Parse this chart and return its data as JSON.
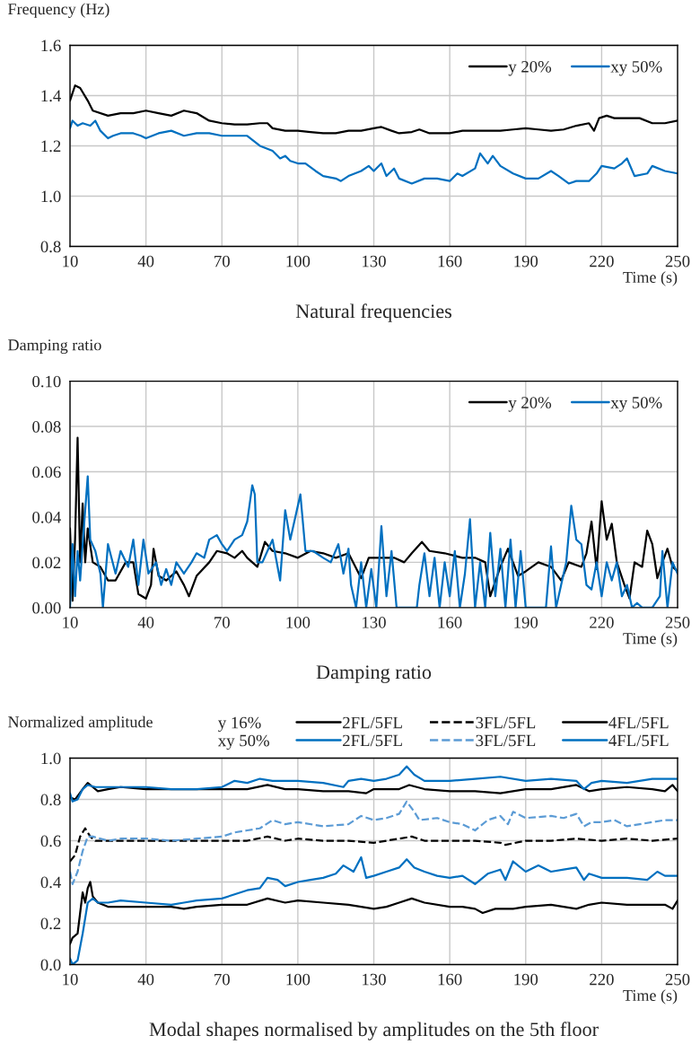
{
  "chart_data": [
    {
      "type": "line",
      "title": "Natural frequencies",
      "xlabel": "Time (s)",
      "ylabel": "Frequency (Hz)",
      "xlim": [
        10,
        250
      ],
      "xticks": [
        10,
        40,
        70,
        100,
        130,
        160,
        190,
        220,
        250
      ],
      "ylim": [
        0.8,
        1.6
      ],
      "yticks": [
        0.8,
        {
          "value": 1.0,
          "label": "1.0"
        },
        1.2,
        1.4,
        1.6
      ],
      "grid": true,
      "legend": "top right",
      "series": [
        {
          "name": "y 20%",
          "color": "#000000",
          "line_style": "solid",
          "x": [
            10,
            12,
            14,
            17,
            19,
            25,
            30,
            35,
            40,
            45,
            50,
            55,
            60,
            65,
            70,
            75,
            80,
            85,
            88,
            90,
            95,
            100,
            105,
            110,
            115,
            120,
            125,
            130,
            133,
            137,
            140,
            145,
            148,
            152,
            160,
            165,
            170,
            175,
            180,
            185,
            190,
            195,
            200,
            205,
            210,
            215,
            217,
            219,
            222,
            225,
            230,
            235,
            240,
            245,
            250
          ],
          "values": [
            1.38,
            1.44,
            1.43,
            1.38,
            1.34,
            1.32,
            1.33,
            1.33,
            1.34,
            1.33,
            1.32,
            1.34,
            1.33,
            1.3,
            1.29,
            1.285,
            1.285,
            1.29,
            1.29,
            1.27,
            1.26,
            1.26,
            1.255,
            1.25,
            1.25,
            1.26,
            1.26,
            1.27,
            1.275,
            1.26,
            1.25,
            1.255,
            1.265,
            1.25,
            1.25,
            1.26,
            1.26,
            1.26,
            1.26,
            1.265,
            1.27,
            1.265,
            1.26,
            1.265,
            1.28,
            1.29,
            1.26,
            1.31,
            1.32,
            1.31,
            1.31,
            1.31,
            1.29,
            1.29,
            1.3
          ]
        },
        {
          "name": "xy 50%",
          "color": "#0070c0",
          "line_style": "solid",
          "x": [
            10,
            11,
            13,
            15,
            18,
            20,
            22,
            25,
            27,
            30,
            35,
            38,
            40,
            45,
            50,
            55,
            60,
            65,
            70,
            75,
            80,
            85,
            90,
            93,
            95,
            97,
            100,
            103,
            107,
            110,
            115,
            117,
            120,
            125,
            128,
            130,
            133,
            135,
            138,
            140,
            145,
            150,
            155,
            160,
            163,
            165,
            170,
            172,
            175,
            177,
            180,
            185,
            190,
            195,
            200,
            203,
            207,
            210,
            215,
            218,
            220,
            225,
            228,
            230,
            233,
            238,
            240,
            245,
            250
          ],
          "values": [
            1.27,
            1.3,
            1.28,
            1.29,
            1.28,
            1.3,
            1.26,
            1.23,
            1.24,
            1.25,
            1.25,
            1.24,
            1.23,
            1.25,
            1.26,
            1.24,
            1.25,
            1.25,
            1.24,
            1.24,
            1.24,
            1.2,
            1.18,
            1.15,
            1.16,
            1.14,
            1.13,
            1.13,
            1.1,
            1.08,
            1.07,
            1.06,
            1.08,
            1.1,
            1.12,
            1.1,
            1.13,
            1.08,
            1.11,
            1.07,
            1.05,
            1.07,
            1.07,
            1.06,
            1.09,
            1.08,
            1.11,
            1.17,
            1.13,
            1.16,
            1.12,
            1.09,
            1.07,
            1.07,
            1.1,
            1.08,
            1.05,
            1.06,
            1.06,
            1.09,
            1.12,
            1.11,
            1.13,
            1.15,
            1.08,
            1.09,
            1.12,
            1.1,
            1.09
          ]
        }
      ]
    },
    {
      "type": "line",
      "title": "Damping ratio",
      "xlabel": "Time (s)",
      "ylabel": "Damping ratio",
      "xlim": [
        10,
        250
      ],
      "xticks": [
        10,
        40,
        70,
        100,
        130,
        160,
        190,
        220,
        250
      ],
      "ylim": [
        0,
        0.1
      ],
      "yticks": [
        {
          "value": 0,
          "label": "0.00"
        },
        {
          "value": 0.02,
          "label": "0.02"
        },
        {
          "value": 0.04,
          "label": "0.04"
        },
        {
          "value": 0.06,
          "label": "0.06"
        },
        {
          "value": 0.08,
          "label": "0.08"
        },
        {
          "value": 0.1,
          "label": "0.10"
        }
      ],
      "grid": true,
      "legend": "top right",
      "series": [
        {
          "name": "y 20%",
          "color": "#000000",
          "line_style": "solid",
          "x": [
            10,
            11,
            12,
            13,
            14,
            15,
            16,
            17,
            19,
            22,
            25,
            28,
            32,
            35,
            37,
            40,
            42,
            43,
            45,
            48,
            52,
            55,
            57,
            60,
            65,
            68,
            72,
            75,
            78,
            80,
            84,
            87,
            90,
            95,
            100,
            105,
            110,
            115,
            120,
            125,
            128,
            133,
            138,
            142,
            145,
            149,
            152,
            158,
            165,
            170,
            174,
            176,
            180,
            183,
            187,
            190,
            195,
            200,
            204,
            207,
            212,
            214,
            216,
            218,
            220,
            222,
            224,
            226,
            229,
            231,
            233,
            236,
            238,
            240,
            242,
            244,
            246,
            248,
            250
          ],
          "values": [
            0.035,
            0.003,
            0.03,
            0.075,
            0.02,
            0.046,
            0.02,
            0.035,
            0.02,
            0.018,
            0.012,
            0.012,
            0.02,
            0.02,
            0.006,
            0.004,
            0.01,
            0.026,
            0.014,
            0.012,
            0.016,
            0.01,
            0.005,
            0.014,
            0.02,
            0.025,
            0.024,
            0.022,
            0.025,
            0.022,
            0.018,
            0.029,
            0.025,
            0.024,
            0.022,
            0.025,
            0.024,
            0.022,
            0.024,
            0.013,
            0.022,
            0.022,
            0.022,
            0.02,
            0.024,
            0.029,
            0.025,
            0.024,
            0.022,
            0.022,
            0.02,
            0.005,
            0.018,
            0.026,
            0.014,
            0.016,
            0.02,
            0.018,
            0.012,
            0.02,
            0.018,
            0.024,
            0.038,
            0.017,
            0.047,
            0.03,
            0.037,
            0.02,
            0.01,
            0.004,
            0.02,
            0.018,
            0.034,
            0.028,
            0.013,
            0.02,
            0.026,
            0.018,
            0.016
          ]
        },
        {
          "name": "xy 50%",
          "color": "#0070c0",
          "line_style": "solid",
          "x": [
            10,
            11,
            12,
            13,
            14,
            15,
            17,
            18,
            20,
            22,
            23,
            25,
            28,
            30,
            33,
            35,
            37,
            39,
            41,
            44,
            46,
            48,
            50,
            52,
            55,
            58,
            60,
            63,
            65,
            68,
            70,
            72,
            75,
            78,
            80,
            82,
            83,
            84,
            86,
            88,
            90,
            92,
            93,
            95,
            97,
            99,
            101,
            103,
            106,
            110,
            113,
            116,
            118,
            120,
            121,
            123,
            125,
            127,
            129,
            131,
            133,
            135,
            137,
            139,
            141,
            145,
            147,
            148,
            150,
            152,
            154,
            156,
            158,
            160,
            162,
            164,
            166,
            168,
            170,
            172,
            174,
            176,
            178,
            180,
            182,
            184,
            186,
            188,
            190,
            192,
            196,
            198,
            200,
            202,
            204,
            206,
            208,
            210,
            212,
            214,
            216,
            218,
            220,
            222,
            224,
            226,
            228,
            230,
            232,
            234,
            236,
            240,
            243,
            244,
            246,
            248,
            250
          ],
          "values": [
            0.0,
            0.028,
            0.005,
            0.025,
            0.012,
            0.028,
            0.058,
            0.03,
            0.025,
            0.015,
            0.0,
            0.028,
            0.015,
            0.025,
            0.018,
            0.03,
            0.01,
            0.03,
            0.015,
            0.02,
            0.01,
            0.017,
            0.01,
            0.02,
            0.015,
            0.02,
            0.024,
            0.022,
            0.03,
            0.032,
            0.028,
            0.025,
            0.03,
            0.032,
            0.038,
            0.054,
            0.05,
            0.02,
            0.02,
            0.025,
            0.03,
            0.018,
            0.012,
            0.043,
            0.03,
            0.04,
            0.05,
            0.025,
            0.025,
            0.022,
            0.02,
            0.028,
            0.015,
            0.026,
            0.01,
            0.0,
            0.02,
            0.0,
            0.017,
            0.0,
            0.036,
            0.005,
            0.025,
            0.0,
            0.0,
            0.0,
            0.0,
            0.01,
            0.024,
            0.005,
            0.022,
            0.0,
            0.02,
            0.005,
            0.025,
            0.0,
            0.015,
            0.039,
            0.0,
            0.02,
            0.0,
            0.033,
            0.005,
            0.026,
            0.0,
            0.03,
            0.0,
            0.025,
            0.0,
            0.0,
            0.0,
            0.0,
            0.027,
            0.0,
            0.01,
            0.02,
            0.045,
            0.03,
            0.028,
            0.01,
            0.008,
            0.02,
            0.005,
            0.02,
            0.012,
            0.02,
            0.005,
            0.01,
            0.0,
            0.002,
            0.0,
            0.0,
            0.005,
            0.025,
            0.0,
            0.02,
            0.015
          ]
        }
      ]
    },
    {
      "type": "line",
      "title": "Modal shapes normalised by amplitudes on the 5th floor",
      "xlabel": "Time (s)",
      "ylabel": "Normalized amplitude",
      "annotations": [
        "y 16%",
        "xy 50%"
      ],
      "xlim": [
        10,
        250
      ],
      "xticks": [
        10,
        40,
        70,
        100,
        130,
        160,
        190,
        220,
        250
      ],
      "ylim": [
        0,
        1.0
      ],
      "yticks": [
        {
          "value": 0,
          "label": "0.0"
        },
        0.2,
        0.4,
        0.6,
        0.8,
        {
          "value": 1.0,
          "label": "1.0"
        }
      ],
      "grid": true,
      "legend": "top",
      "series": [
        {
          "name": "2FL/5FL",
          "color": "#000000",
          "line_style": "solid",
          "x": [
            10,
            11,
            13,
            14,
            15,
            16,
            17,
            18,
            19,
            21,
            25,
            30,
            40,
            50,
            55,
            60,
            70,
            80,
            88,
            95,
            100,
            110,
            120,
            130,
            135,
            140,
            145,
            150,
            160,
            165,
            170,
            173,
            178,
            185,
            190,
            200,
            205,
            210,
            215,
            220,
            230,
            240,
            245,
            248,
            250
          ],
          "values": [
            0.1,
            0.13,
            0.15,
            0.25,
            0.35,
            0.3,
            0.37,
            0.4,
            0.33,
            0.3,
            0.28,
            0.28,
            0.28,
            0.28,
            0.27,
            0.28,
            0.29,
            0.29,
            0.32,
            0.3,
            0.31,
            0.3,
            0.29,
            0.27,
            0.28,
            0.3,
            0.32,
            0.3,
            0.28,
            0.28,
            0.27,
            0.25,
            0.27,
            0.27,
            0.28,
            0.29,
            0.28,
            0.27,
            0.29,
            0.3,
            0.29,
            0.29,
            0.29,
            0.27,
            0.31
          ]
        },
        {
          "name": "2FL/5FL",
          "color": "#0070c0",
          "line_style": "solid",
          "x": [
            10,
            11,
            13,
            15,
            17,
            19,
            21,
            25,
            30,
            40,
            50,
            55,
            60,
            70,
            80,
            85,
            88,
            92,
            95,
            100,
            105,
            110,
            115,
            118,
            122,
            125,
            127,
            130,
            135,
            140,
            143,
            146,
            150,
            155,
            160,
            165,
            170,
            175,
            180,
            182,
            185,
            190,
            195,
            200,
            205,
            210,
            213,
            215,
            220,
            230,
            238,
            242,
            245,
            250
          ],
          "values": [
            0.03,
            0.0,
            0.02,
            0.15,
            0.3,
            0.32,
            0.3,
            0.3,
            0.31,
            0.3,
            0.29,
            0.3,
            0.31,
            0.32,
            0.36,
            0.37,
            0.42,
            0.41,
            0.38,
            0.4,
            0.41,
            0.42,
            0.44,
            0.48,
            0.45,
            0.52,
            0.42,
            0.43,
            0.45,
            0.47,
            0.51,
            0.47,
            0.45,
            0.43,
            0.42,
            0.43,
            0.39,
            0.44,
            0.46,
            0.41,
            0.5,
            0.45,
            0.48,
            0.45,
            0.46,
            0.47,
            0.41,
            0.44,
            0.42,
            0.42,
            0.41,
            0.45,
            0.43,
            0.43
          ]
        },
        {
          "name": "3FL/5FL",
          "color": "#000000",
          "line_style": "dashed",
          "x": [
            10,
            12,
            14,
            16,
            18,
            20,
            30,
            40,
            50,
            60,
            70,
            80,
            88,
            95,
            100,
            110,
            120,
            130,
            140,
            145,
            150,
            160,
            170,
            180,
            182,
            190,
            200,
            210,
            220,
            230,
            240,
            250
          ],
          "values": [
            0.5,
            0.53,
            0.62,
            0.66,
            0.62,
            0.6,
            0.6,
            0.6,
            0.6,
            0.6,
            0.6,
            0.6,
            0.62,
            0.6,
            0.61,
            0.6,
            0.6,
            0.59,
            0.61,
            0.62,
            0.6,
            0.6,
            0.6,
            0.59,
            0.58,
            0.6,
            0.6,
            0.61,
            0.6,
            0.61,
            0.6,
            0.61
          ]
        },
        {
          "name": "3FL/5FL",
          "color": "#5b9bd5",
          "line_style": "dashed",
          "x": [
            10,
            11,
            13,
            15,
            17,
            19,
            25,
            30,
            40,
            50,
            60,
            70,
            75,
            80,
            85,
            90,
            95,
            100,
            110,
            120,
            125,
            130,
            135,
            140,
            143,
            146,
            148,
            155,
            160,
            165,
            170,
            175,
            180,
            183,
            185,
            190,
            200,
            205,
            210,
            213,
            216,
            220,
            225,
            230,
            240,
            245,
            250
          ],
          "values": [
            0.45,
            0.39,
            0.45,
            0.55,
            0.62,
            0.62,
            0.6,
            0.61,
            0.61,
            0.6,
            0.61,
            0.62,
            0.64,
            0.65,
            0.66,
            0.7,
            0.68,
            0.69,
            0.67,
            0.68,
            0.72,
            0.7,
            0.71,
            0.73,
            0.79,
            0.74,
            0.7,
            0.71,
            0.69,
            0.68,
            0.65,
            0.7,
            0.72,
            0.68,
            0.74,
            0.71,
            0.72,
            0.71,
            0.73,
            0.67,
            0.69,
            0.69,
            0.7,
            0.67,
            0.69,
            0.7,
            0.7
          ]
        },
        {
          "name": "4FL/5FL",
          "color": "#000000",
          "line_style": "solid",
          "x": [
            10,
            12,
            15,
            17,
            19,
            21,
            25,
            30,
            40,
            50,
            60,
            70,
            80,
            88,
            95,
            100,
            110,
            120,
            127,
            130,
            140,
            144,
            150,
            160,
            170,
            180,
            190,
            200,
            210,
            215,
            220,
            230,
            240,
            245,
            248,
            250
          ],
          "values": [
            0.81,
            0.8,
            0.85,
            0.88,
            0.86,
            0.84,
            0.85,
            0.86,
            0.85,
            0.85,
            0.85,
            0.85,
            0.85,
            0.87,
            0.85,
            0.85,
            0.84,
            0.84,
            0.83,
            0.85,
            0.85,
            0.87,
            0.85,
            0.84,
            0.84,
            0.83,
            0.85,
            0.85,
            0.87,
            0.84,
            0.85,
            0.86,
            0.85,
            0.84,
            0.87,
            0.84
          ]
        },
        {
          "name": "4FL/5FL",
          "color": "#0070c0",
          "line_style": "solid",
          "x": [
            10,
            11,
            13,
            15,
            17,
            20,
            30,
            40,
            50,
            60,
            70,
            75,
            80,
            85,
            90,
            100,
            110,
            118,
            120,
            125,
            130,
            135,
            140,
            143,
            146,
            150,
            160,
            170,
            180,
            190,
            200,
            210,
            213,
            216,
            220,
            230,
            240,
            250
          ],
          "values": [
            0.83,
            0.79,
            0.8,
            0.85,
            0.87,
            0.86,
            0.86,
            0.86,
            0.85,
            0.85,
            0.86,
            0.89,
            0.88,
            0.9,
            0.89,
            0.89,
            0.88,
            0.86,
            0.89,
            0.9,
            0.89,
            0.9,
            0.92,
            0.96,
            0.92,
            0.89,
            0.89,
            0.9,
            0.91,
            0.89,
            0.9,
            0.89,
            0.85,
            0.88,
            0.89,
            0.88,
            0.9,
            0.9
          ]
        }
      ]
    }
  ]
}
